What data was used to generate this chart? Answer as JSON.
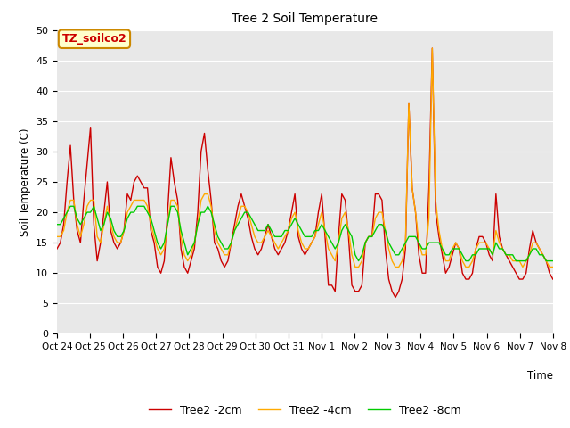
{
  "title": "Tree 2 Soil Temperature",
  "ylabel": "Soil Temperature (C)",
  "xlabel": "Time",
  "ylim": [
    0,
    50
  ],
  "yticks": [
    0,
    5,
    10,
    15,
    20,
    25,
    30,
    35,
    40,
    45,
    50
  ],
  "bg_color": "#e8e8e8",
  "legend_label": "TZ_soilco2",
  "series_labels": [
    "Tree2 -2cm",
    "Tree2 -4cm",
    "Tree2 -8cm"
  ],
  "series_colors": [
    "#cc0000",
    "#ffaa00",
    "#00cc00"
  ],
  "xtick_labels": [
    "Oct 24",
    "Oct 25",
    "Oct 26",
    "Oct 27",
    "Oct 28",
    "Oct 29",
    "Oct 30",
    "Oct 31",
    "Nov 1",
    "Nov 2",
    "Nov 3",
    "Nov 4",
    "Nov 5",
    "Nov 6",
    "Nov 7",
    "Nov 8"
  ],
  "red_y": [
    14,
    15,
    18,
    25,
    31,
    22,
    17,
    15,
    22,
    28,
    34,
    18,
    12,
    15,
    20,
    25,
    17,
    15,
    14,
    15,
    17,
    23,
    22,
    25,
    26,
    25,
    24,
    24,
    17,
    15,
    11,
    10,
    12,
    20,
    29,
    25,
    22,
    14,
    11,
    10,
    12,
    14,
    20,
    30,
    33,
    27,
    22,
    15,
    14,
    12,
    11,
    12,
    15,
    18,
    21,
    23,
    21,
    19,
    16,
    14,
    13,
    14,
    16,
    18,
    16,
    14,
    13,
    14,
    15,
    17,
    20,
    23,
    16,
    14,
    13,
    14,
    15,
    16,
    20,
    23,
    16,
    8,
    8,
    7,
    16,
    23,
    22,
    16,
    8,
    7,
    7,
    8,
    15,
    16,
    16,
    23,
    23,
    22,
    14,
    9,
    7,
    6,
    7,
    9,
    14,
    38,
    24,
    20,
    13,
    10,
    10,
    24,
    47,
    20,
    16,
    13,
    10,
    11,
    13,
    15,
    14,
    10,
    9,
    9,
    10,
    14,
    16,
    16,
    15,
    13,
    12,
    23,
    16,
    14,
    13,
    12,
    11,
    10,
    9,
    9,
    10,
    14,
    17,
    15,
    14,
    13,
    12,
    10,
    9
  ],
  "orange_y": [
    16,
    16,
    17,
    20,
    22,
    22,
    18,
    16,
    18,
    21,
    22,
    22,
    16,
    15,
    18,
    21,
    18,
    16,
    15,
    15,
    17,
    20,
    21,
    22,
    22,
    22,
    22,
    21,
    18,
    16,
    14,
    13,
    14,
    18,
    22,
    22,
    21,
    16,
    13,
    12,
    13,
    15,
    18,
    22,
    23,
    23,
    21,
    17,
    15,
    14,
    13,
    13,
    15,
    17,
    19,
    21,
    21,
    20,
    18,
    16,
    15,
    15,
    16,
    17,
    16,
    15,
    14,
    15,
    16,
    17,
    19,
    20,
    17,
    15,
    14,
    14,
    15,
    16,
    18,
    20,
    17,
    14,
    13,
    12,
    15,
    19,
    20,
    17,
    13,
    11,
    11,
    12,
    15,
    16,
    16,
    19,
    20,
    20,
    17,
    14,
    12,
    11,
    11,
    12,
    15,
    38,
    24,
    20,
    15,
    13,
    13,
    19,
    47,
    22,
    17,
    14,
    12,
    12,
    14,
    15,
    14,
    12,
    11,
    11,
    12,
    14,
    15,
    15,
    15,
    14,
    13,
    17,
    15,
    14,
    13,
    13,
    12,
    12,
    12,
    11,
    12,
    13,
    15,
    15,
    14,
    13,
    12,
    11,
    11
  ],
  "green_y": [
    18,
    18,
    19,
    20,
    21,
    21,
    19,
    18,
    19,
    20,
    20,
    21,
    19,
    17,
    18,
    20,
    19,
    17,
    16,
    16,
    17,
    19,
    20,
    20,
    21,
    21,
    21,
    20,
    19,
    17,
    15,
    14,
    15,
    18,
    21,
    21,
    20,
    17,
    15,
    13,
    14,
    15,
    18,
    20,
    20,
    21,
    20,
    18,
    16,
    15,
    14,
    14,
    15,
    17,
    18,
    19,
    20,
    20,
    19,
    18,
    17,
    17,
    17,
    18,
    17,
    16,
    16,
    16,
    17,
    17,
    18,
    19,
    18,
    17,
    16,
    16,
    16,
    17,
    17,
    18,
    17,
    16,
    15,
    14,
    15,
    17,
    18,
    17,
    16,
    13,
    12,
    13,
    15,
    16,
    16,
    17,
    18,
    18,
    17,
    15,
    14,
    13,
    13,
    14,
    15,
    16,
    16,
    16,
    15,
    14,
    14,
    15,
    15,
    15,
    15,
    14,
    13,
    13,
    14,
    14,
    14,
    13,
    12,
    12,
    13,
    13,
    14,
    14,
    14,
    14,
    13,
    15,
    14,
    14,
    13,
    13,
    13,
    12,
    12,
    12,
    12,
    13,
    14,
    14,
    13,
    13,
    12,
    12,
    12
  ]
}
